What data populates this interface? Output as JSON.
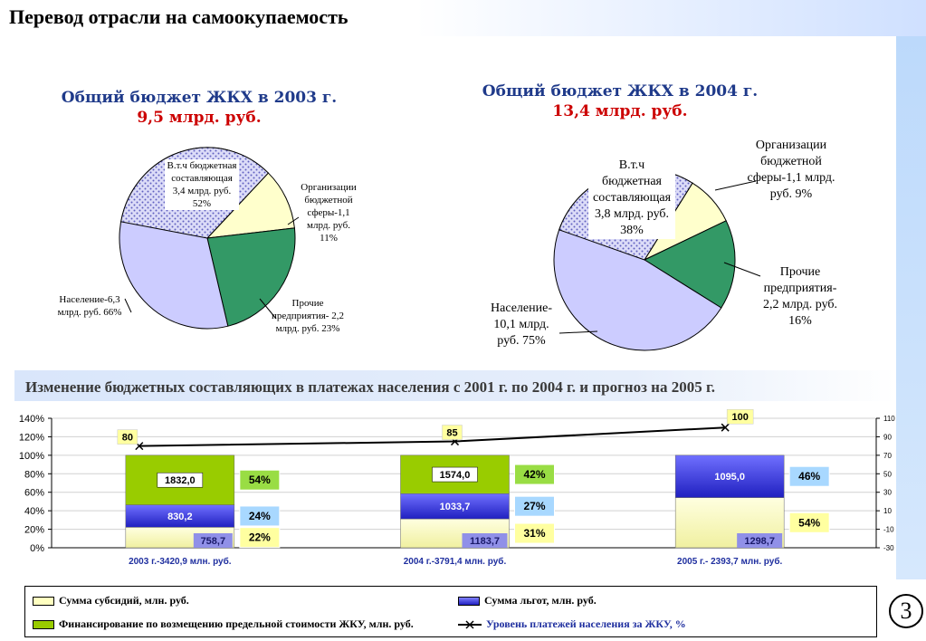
{
  "page": {
    "title": "Перевод отрасли на самоокупаемость",
    "section_title": "Изменение бюджетных составляющих в платежах населения с 2001 г.  по 2004 г. и прогноз на 2005 г.",
    "page_number": "3"
  },
  "colors": {
    "subsidy": "#ffffc0",
    "benefits": "#4040d8",
    "financing": "#99cc00",
    "pie_budget": "#c8c8f0",
    "pie_orgs": "#ffffcc",
    "pie_other": "#339966",
    "pie_population": "#ccccff"
  },
  "chart_data": [
    {
      "type": "pie",
      "title": "Общий бюджет ЖКХ в 2003 г.",
      "subtitle": "9,5 млрд. руб.",
      "slices": [
        {
          "label": "Организации бюджетной сферы-1,1 млрд. руб. 11%",
          "value": 11
        },
        {
          "label": "Прочие предприятия- 2,2 млрд. руб. 23%",
          "value": 23
        },
        {
          "label": "Население-6,3 млрд. руб. 66%",
          "value": 66
        }
      ],
      "inset": "В.т.ч бюджетная составляющая 3,4 млрд. руб. 52%"
    },
    {
      "type": "pie",
      "title": "Общий бюджет ЖКХ в 2004 г.",
      "subtitle": "13,4 млрд. руб.",
      "slices": [
        {
          "label": "Организации бюджетной сферы-1,1 млрд. руб. 9%",
          "value": 9
        },
        {
          "label": "Прочие предприятия- 2,2 млрд. руб. 16%",
          "value": 16
        },
        {
          "label": "Население- 10,1 млрд. руб. 75%",
          "value": 75
        }
      ],
      "inset": "В.т.ч бюджетная составляющая 3,8 млрд. руб. 38%"
    },
    {
      "type": "bar",
      "stacked": "percent",
      "categories": [
        "2003 г.-3420,9 млн. руб.",
        "2004 г.-3791,4 млн. руб.",
        "2005 г.- 2393,7 млн. руб."
      ],
      "series": [
        {
          "name": "Сумма субсидий, млн. руб.",
          "values": [
            758.7,
            1183.7,
            1298.7
          ],
          "labels": [
            "758,7",
            "1183,7",
            "1298,7"
          ],
          "percent_labels": [
            "22%",
            "31%",
            "54%"
          ]
        },
        {
          "name": "Сумма  льгот, млн. руб.",
          "values": [
            830.2,
            1033.7,
            1095.0
          ],
          "labels": [
            "830,2",
            "1033,7",
            "1095,0"
          ],
          "percent_labels": [
            "24%",
            "27%",
            "46%"
          ]
        },
        {
          "name": "Финансирование по возмещению предельной стоимости ЖКУ, млн. руб.",
          "values": [
            1832.0,
            1574.0,
            0
          ],
          "labels": [
            "1832,0",
            "1574,0",
            ""
          ],
          "percent_labels": [
            "54%",
            "42%",
            ""
          ]
        }
      ],
      "line": {
        "name": "Уровень платежей населения за ЖКУ, %",
        "values": [
          80,
          85,
          100
        ],
        "labels": [
          "80",
          "85",
          "100"
        ]
      },
      "y_left_ticks": [
        "0%",
        "20%",
        "40%",
        "60%",
        "80%",
        "100%",
        "120%",
        "140%"
      ],
      "y_right_ticks": [
        "-30",
        "-10",
        "10",
        "30",
        "50",
        "70",
        "90",
        "110"
      ],
      "ylim_left": [
        0,
        140
      ],
      "ylim_right": [
        -30,
        110
      ]
    }
  ]
}
